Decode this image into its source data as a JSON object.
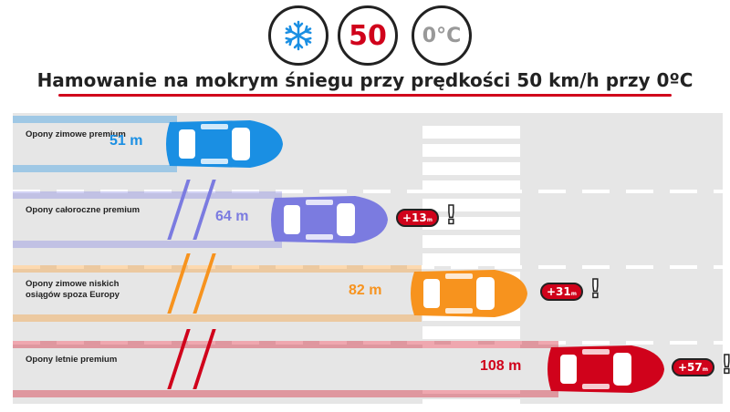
{
  "header": {
    "snow_icon": "snowflake-icon",
    "speed": "50",
    "temperature": "0°C",
    "title": "Hamowanie na mokrym śniegu przy prędkości 50 km/h przy 0ºC"
  },
  "chart_data": {
    "type": "bar",
    "title": "Hamowanie na mokrym śniegu przy prędkości 50 km/h przy 0ºC",
    "categories": [
      "Opony zimowe premium",
      "Opony całoroczne premium",
      "Opony zimowe niskich osiągów spoza Europy",
      "Opony letnie premium"
    ],
    "values": [
      51,
      64,
      82,
      108
    ],
    "unit": "m",
    "value_labels": [
      "51 m",
      "64 m",
      "82 m",
      "108 m"
    ],
    "differences": [
      null,
      13,
      31,
      57
    ],
    "difference_labels": [
      "",
      "+13",
      "+31",
      "+57"
    ],
    "colors": [
      "#1a8fe3",
      "#7b7be0",
      "#f7931e",
      "#d0021b"
    ]
  },
  "rows": [
    {
      "label": "Opony zimowe premium",
      "dist": "51 m",
      "diff": "",
      "unit": "m",
      "color": "#1a8fe3"
    },
    {
      "label": "Opony całoroczne premium",
      "dist": "64 m",
      "diff": "+13",
      "unit": "m",
      "color": "#7b7be0"
    },
    {
      "label": "Opony zimowe niskich osiągów spoza Europy",
      "dist": "82 m",
      "diff": "+31",
      "unit": "m",
      "color": "#f7931e"
    },
    {
      "label": "Opony letnie premium",
      "dist": "108 m",
      "diff": "+57",
      "unit": "m",
      "color": "#d0021b"
    }
  ]
}
